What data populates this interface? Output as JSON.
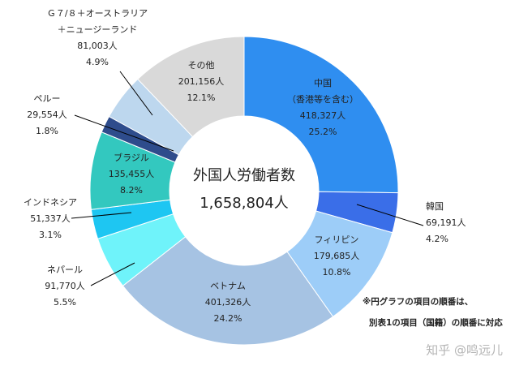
{
  "chart_data": {
    "type": "donut",
    "center_title": "外国人労働者数",
    "center_value_label": "1,658,804人",
    "categories": [
      [
        "中国",
        "（香港等を含む）"
      ],
      [
        "韓国"
      ],
      [
        "フィリピン"
      ],
      [
        "ベトナム"
      ],
      [
        "ネパール"
      ],
      [
        "インドネシア"
      ],
      [
        "ブラジル"
      ],
      [
        "ペルー"
      ],
      [
        "Ｇ７/８＋オーストラリア",
        "＋ニュージーランド"
      ],
      [
        "その他"
      ]
    ],
    "values": [
      418327,
      69191,
      179685,
      401326,
      91770,
      51337,
      135455,
      29554,
      81003,
      201156
    ],
    "value_labels": [
      "418,327人",
      "69,191人",
      "179,685人",
      "401,326人",
      "91,770人",
      "51,337人",
      "135,455人",
      "29,554人",
      "81,003人",
      "201,156人"
    ],
    "percents": [
      25.2,
      4.2,
      10.8,
      24.2,
      5.5,
      3.1,
      8.2,
      1.8,
      4.9,
      12.1
    ],
    "percent_labels": [
      "25.2%",
      "4.2%",
      "10.8%",
      "24.2%",
      "5.5%",
      "3.1%",
      "8.2%",
      "1.8%",
      "4.9%",
      "12.1%"
    ],
    "colors": [
      "#2f8ef0",
      "#3a6ee8",
      "#9dcdf8",
      "#a6c3e3",
      "#6ff3fa",
      "#1ec6f2",
      "#33c8bf",
      "#2e4c8c",
      "#bdd7ee",
      "#d9d9d9"
    ],
    "notes": [
      "※円グラフの項目の順番は、",
      "別表1の項目（国籍）の順番に対応"
    ],
    "watermark": "知乎 @鸣远儿"
  }
}
